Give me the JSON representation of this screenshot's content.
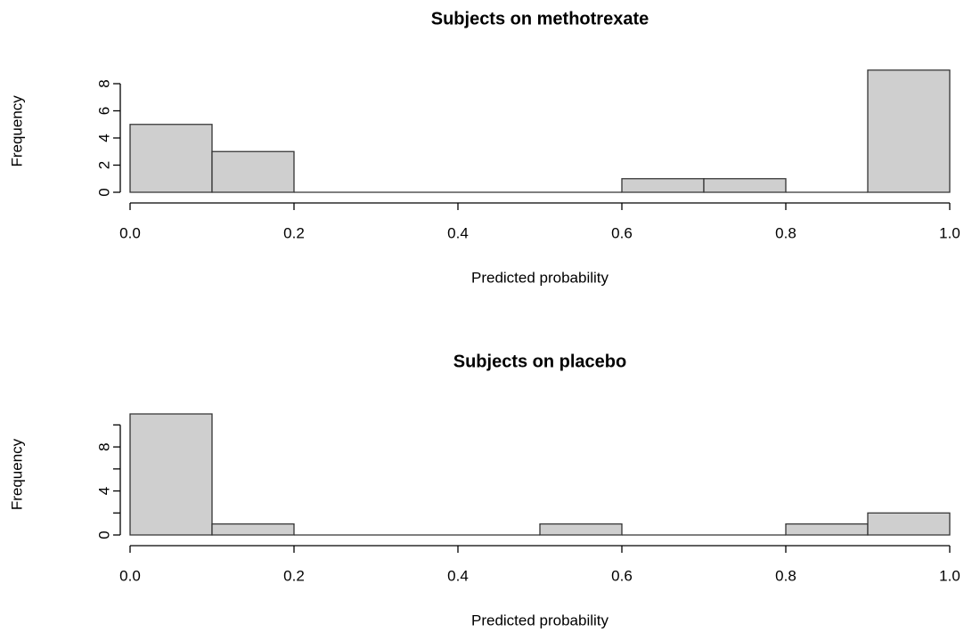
{
  "chart_data": [
    {
      "type": "histogram",
      "title": "Subjects on methotrexate",
      "x_label": "Predicted probability",
      "y_label": "Frequency",
      "bins": [
        0,
        0.1,
        0.2,
        0.3,
        0.4,
        0.5,
        0.6,
        0.7,
        0.8,
        0.9,
        1
      ],
      "counts": [
        5,
        3,
        0,
        0,
        0,
        0,
        1,
        1,
        0,
        9
      ],
      "color": "#cfcfcf",
      "xlim": [
        0,
        1
      ],
      "ylim": [
        0,
        9
      ],
      "xticks": [
        {
          "value": 0,
          "label": "0.0"
        },
        0.2,
        0.4,
        0.6,
        0.8,
        {
          "value": 1,
          "label": "1.0"
        }
      ],
      "yticks": [
        0,
        2,
        4,
        6,
        8
      ]
    },
    {
      "type": "histogram",
      "title": "Subjects on placebo",
      "x_label": "Predicted probability",
      "y_label": "Frequency",
      "bins": [
        0,
        0.1,
        0.2,
        0.3,
        0.4,
        0.5,
        0.6,
        0.7,
        0.8,
        0.9,
        1
      ],
      "counts": [
        11,
        1,
        0,
        0,
        0,
        1,
        0,
        0,
        1,
        2
      ],
      "color": "#cfcfcf",
      "xlim": [
        0,
        1
      ],
      "ylim": [
        0,
        11
      ],
      "xticks": [
        {
          "value": 0,
          "label": "0.0"
        },
        0.2,
        0.4,
        0.6,
        0.8,
        {
          "value": 1,
          "label": "1.0"
        }
      ],
      "yticks": [
        0,
        4,
        8
      ],
      "yminorticks": [
        2,
        6,
        10
      ]
    }
  ]
}
